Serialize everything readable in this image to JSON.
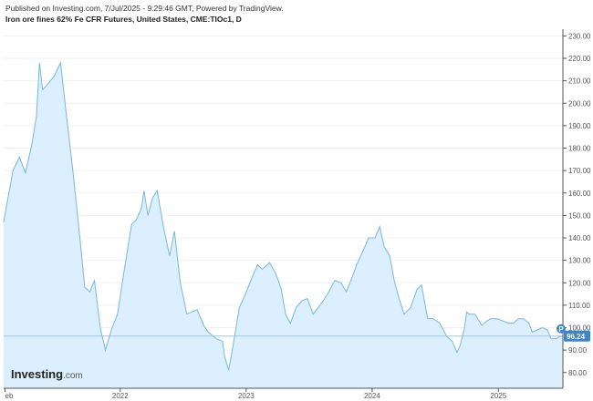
{
  "header": {
    "published": "Published on Investing.com, 7/Jul/2025 - 9:29:46 GMT, Powered by TradingView.",
    "title": "Iron ore fines 62% Fe CFR Futures, United States, CME:TIOc1, D"
  },
  "branding": {
    "logo_main": "Investing",
    "logo_suffix": ".com"
  },
  "colors": {
    "line": "#7ab6dc",
    "fill": "#dcefff",
    "last_price_badge": "#3d86c6",
    "grid": "#f0f0f0",
    "axis": "#555555"
  },
  "chart_data": {
    "type": "area",
    "title": "Iron ore fines 62% Fe CFR Futures, United States, CME:TIOc1, D",
    "xlabel": "",
    "ylabel": "",
    "x_tick_labels": [
      "eb",
      "2022",
      "2023",
      "2024",
      "2025"
    ],
    "x_ticks": [
      "2021-02-01",
      "2022-01-01",
      "2023-01-01",
      "2024-01-01",
      "2025-01-01"
    ],
    "xlim": [
      "2021-01-28",
      "2025-07-07"
    ],
    "y_ticks": [
      80,
      90,
      100,
      110,
      120,
      130,
      140,
      150,
      160,
      170,
      180,
      190,
      200,
      210,
      220,
      230
    ],
    "y_tick_labels": [
      "80.00",
      "90.00",
      "100.00",
      "110.00",
      "120.00",
      "130.00",
      "140.00",
      "150.00",
      "160.00",
      "170.00",
      "180.00",
      "190.00",
      "200.00",
      "210.00",
      "220.00",
      "230.00"
    ],
    "ylim": [
      73,
      233
    ],
    "last_price": 96.24,
    "last_price_label": "96.24",
    "last_price_marker": "P",
    "series": [
      {
        "dates": [
          "2021-01-28",
          "2021-02-12",
          "2021-02-24",
          "2021-03-15",
          "2021-04-01",
          "2021-04-19",
          "2021-05-03",
          "2021-05-12",
          "2021-05-21",
          "2021-06-02",
          "2021-06-23",
          "2021-07-12",
          "2021-07-28",
          "2021-08-18",
          "2021-09-08",
          "2021-09-20",
          "2021-10-05",
          "2021-10-18",
          "2021-11-04",
          "2021-11-19",
          "2021-12-06",
          "2021-12-24",
          "2022-01-14",
          "2022-02-03",
          "2022-02-16",
          "2022-03-03",
          "2022-03-11",
          "2022-03-22",
          "2022-04-05",
          "2022-04-18",
          "2022-05-06",
          "2022-05-24",
          "2022-06-07",
          "2022-06-24",
          "2022-07-13",
          "2022-07-27",
          "2022-08-12",
          "2022-08-31",
          "2022-09-13",
          "2022-10-07",
          "2022-10-24",
          "2022-10-31",
          "2022-11-11",
          "2022-11-24",
          "2022-12-12",
          "2022-12-30",
          "2023-01-17",
          "2023-02-03",
          "2023-02-17",
          "2023-03-10",
          "2023-03-28",
          "2023-04-13",
          "2023-04-25",
          "2023-05-09",
          "2023-05-26",
          "2023-06-12",
          "2023-06-27",
          "2023-07-14",
          "2023-08-08",
          "2023-08-25",
          "2023-09-15",
          "2023-10-03",
          "2023-10-18",
          "2023-11-03",
          "2023-11-17",
          "2023-12-08",
          "2023-12-22",
          "2024-01-09",
          "2024-01-23",
          "2024-02-05",
          "2024-02-21",
          "2024-03-05",
          "2024-03-19",
          "2024-04-03",
          "2024-04-22",
          "2024-05-10",
          "2024-05-23",
          "2024-06-10",
          "2024-06-26",
          "2024-07-15",
          "2024-08-05",
          "2024-08-20",
          "2024-09-03",
          "2024-09-12",
          "2024-09-25",
          "2024-10-01",
          "2024-10-09",
          "2024-10-25",
          "2024-11-14",
          "2024-11-29",
          "2024-12-09",
          "2024-12-27",
          "2025-01-14",
          "2025-01-31",
          "2025-02-14",
          "2025-02-28",
          "2025-03-14",
          "2025-03-31",
          "2025-04-09",
          "2025-04-24",
          "2025-05-09",
          "2025-05-23",
          "2025-06-03",
          "2025-06-18",
          "2025-06-27",
          "2025-07-07"
        ],
        "values": [
          147,
          160,
          170,
          176,
          169,
          181,
          194,
          218,
          206,
          208,
          212,
          218,
          196,
          168,
          137,
          118,
          116,
          121,
          100,
          90,
          99,
          106,
          127,
          146,
          148,
          153,
          161,
          150,
          158,
          161,
          145,
          132,
          143,
          120,
          106,
          107,
          108,
          101,
          98,
          95,
          94,
          87,
          81,
          92,
          109,
          115,
          122,
          128,
          126,
          129,
          124,
          117,
          106,
          102,
          109,
          112,
          113,
          106,
          111,
          115,
          121,
          120,
          116,
          122,
          128,
          135,
          140,
          140,
          145,
          136,
          132,
          121,
          113,
          106,
          109,
          117,
          119,
          104,
          104,
          102,
          96,
          94,
          89,
          92,
          100,
          107,
          106,
          106,
          101,
          103,
          104,
          104,
          103,
          102,
          102,
          104,
          104,
          102,
          98,
          99,
          100,
          99,
          95,
          95,
          96,
          96.24
        ]
      }
    ]
  }
}
